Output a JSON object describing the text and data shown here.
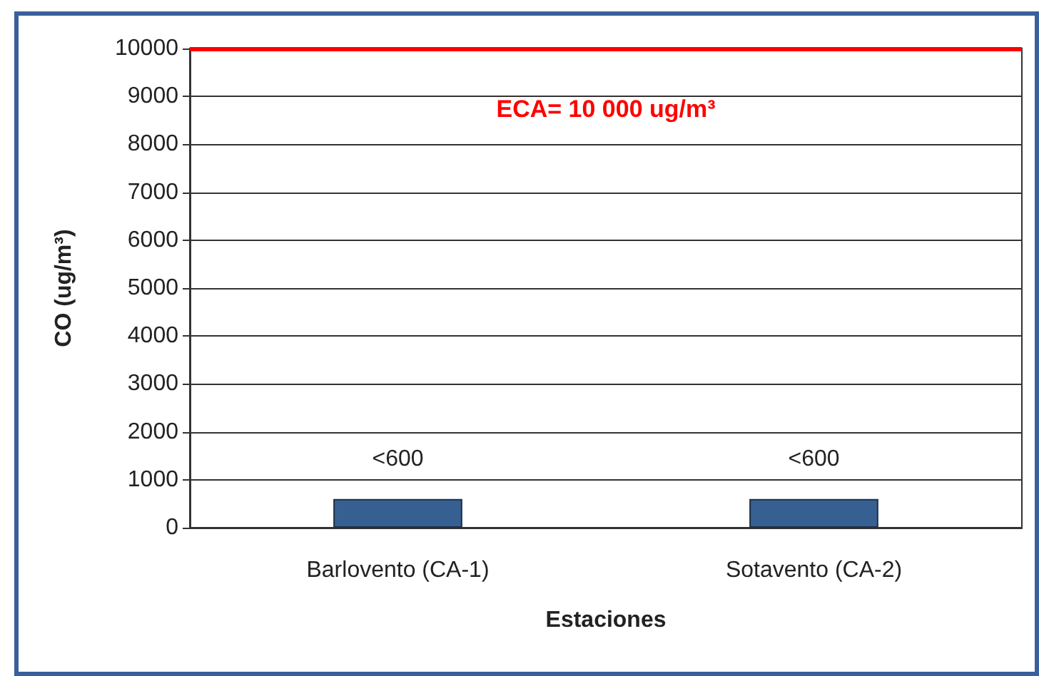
{
  "chart_data": {
    "type": "bar",
    "categories": [
      "Barlovento (CA-1)",
      "Sotavento (CA-2)"
    ],
    "values": [
      600,
      600
    ],
    "value_labels": [
      "<600",
      "<600"
    ],
    "color": "#376092",
    "xlabel": "Estaciones",
    "ylabel": "CO (ug/m³)",
    "ylim": [
      0,
      10000
    ],
    "yticks": [
      0,
      1000,
      2000,
      3000,
      4000,
      5000,
      6000,
      7000,
      8000,
      9000,
      10000
    ],
    "grid": "y",
    "ref_lines": [
      {
        "axis": "y",
        "value": 10000,
        "label": "ECA= 10 000 ug/m³",
        "color": "#ff0000"
      }
    ]
  }
}
